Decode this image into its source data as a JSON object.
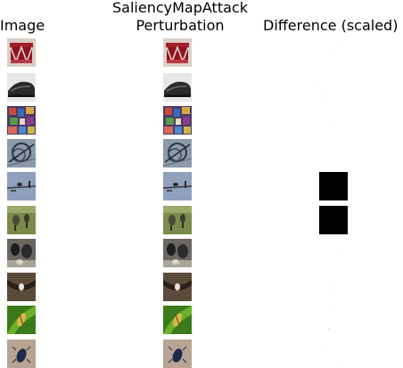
{
  "headers": {
    "image": "Image",
    "perturbation_line1": "SaliencyMapAttack",
    "perturbation_line2": "Perturbation",
    "difference": "Difference (scaled)"
  },
  "rows": [
    {
      "subject": "red drum",
      "difference": "near-white"
    },
    {
      "subject": "black shoe",
      "difference": "near-white"
    },
    {
      "subject": "colorful mosaic",
      "difference": "near-white"
    },
    {
      "subject": "tangled wire",
      "difference": "near-white"
    },
    {
      "subject": "bird on branch against sky",
      "difference": "black"
    },
    {
      "subject": "birds on grass",
      "difference": "black"
    },
    {
      "subject": "dark birds",
      "difference": "near-white"
    },
    {
      "subject": "eagle",
      "difference": "near-white"
    },
    {
      "subject": "insect on leaf",
      "difference": "near-white"
    },
    {
      "subject": "beetle on ground",
      "difference": "near-white"
    }
  ],
  "colors": {
    "background": "#ffffff",
    "text": "#000000",
    "black_diff": "#000000"
  }
}
